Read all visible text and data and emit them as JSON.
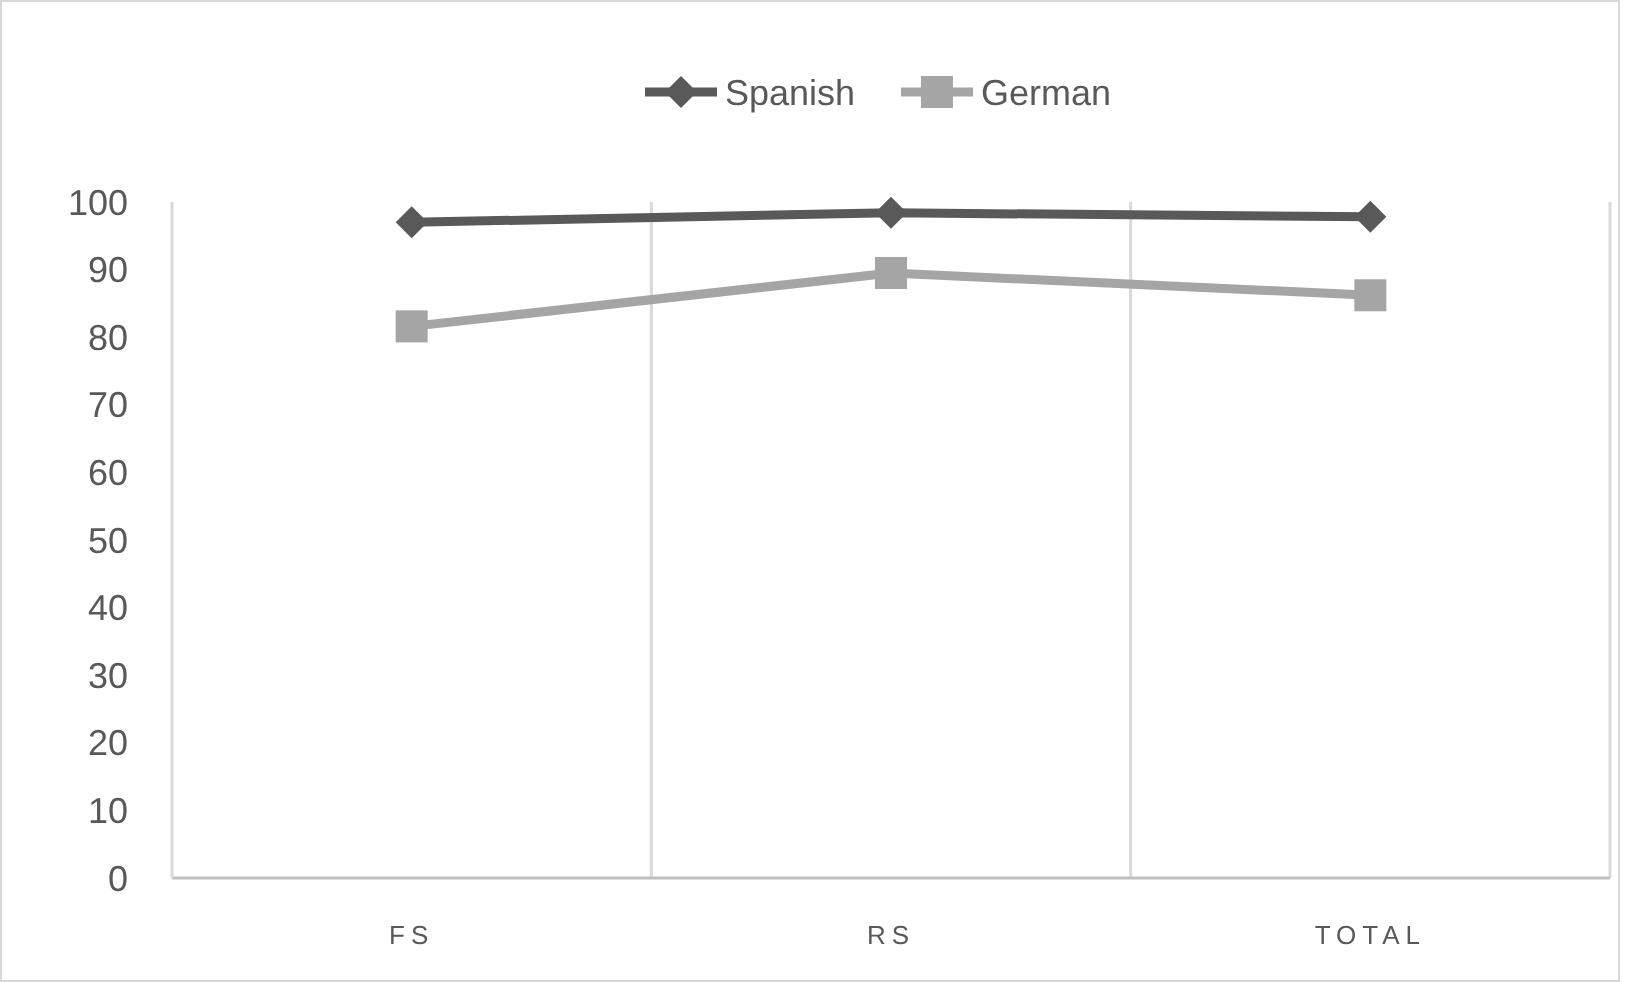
{
  "chart_data": {
    "type": "line",
    "categories": [
      "FS",
      "RS",
      "TOTAL"
    ],
    "series": [
      {
        "name": "Spanish",
        "color": "#595959",
        "values": [
          97.0,
          98.4,
          97.8
        ],
        "marker": "diamond"
      },
      {
        "name": "German",
        "color": "#a5a5a5",
        "values": [
          81.6,
          89.5,
          86.2
        ],
        "marker": "square"
      }
    ],
    "ylim": [
      0,
      100
    ],
    "yticks": [
      0,
      10,
      20,
      30,
      40,
      50,
      60,
      70,
      80,
      90,
      100
    ],
    "grid": "x",
    "legend": "top",
    "line_style": "solid"
  }
}
